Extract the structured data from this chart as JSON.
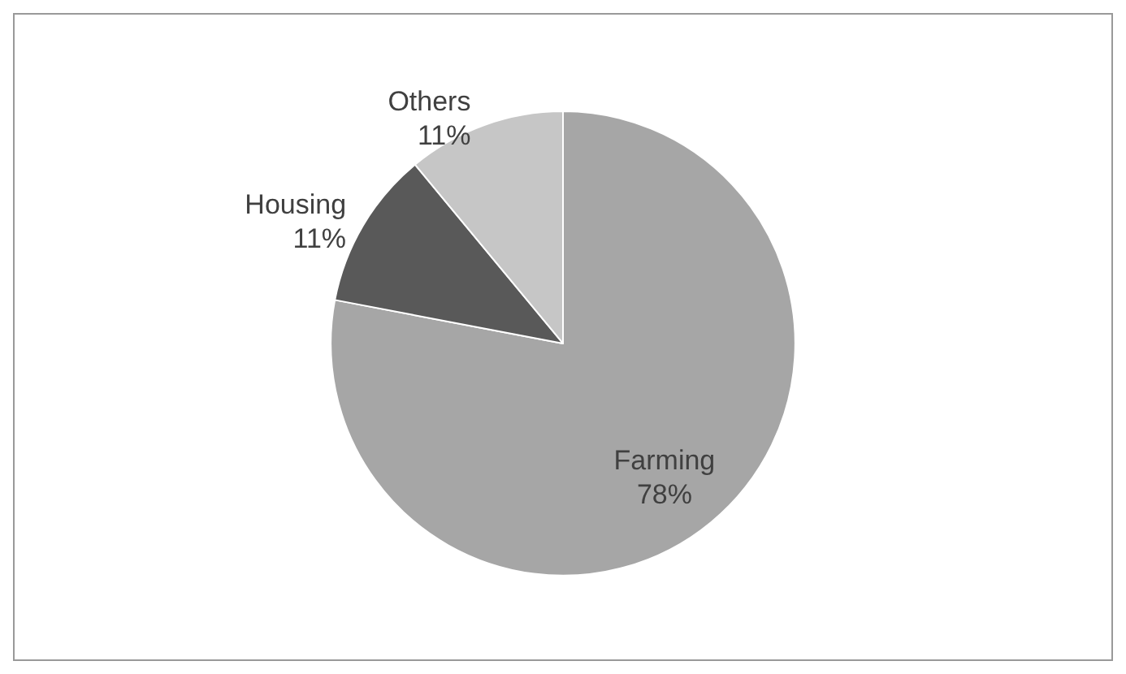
{
  "chart_data": {
    "type": "pie",
    "categories": [
      "Farming",
      "Housing",
      "Others"
    ],
    "values": [
      78,
      11,
      11
    ],
    "colors": [
      "#a6a6a6",
      "#595959",
      "#c6c6c6"
    ],
    "value_labels": [
      "78%",
      "11%",
      "11%"
    ],
    "legend": false
  }
}
